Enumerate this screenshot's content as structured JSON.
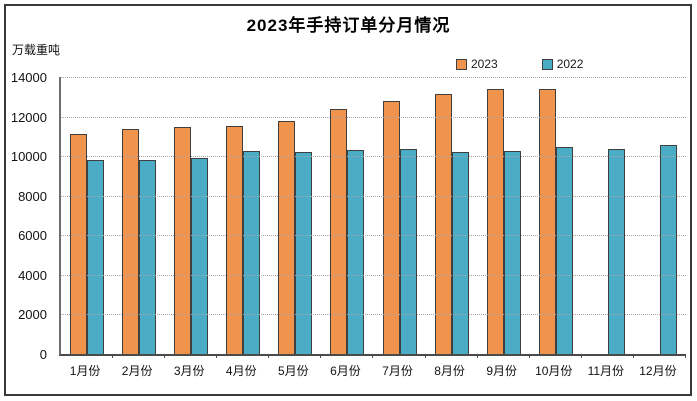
{
  "title": "2023年手持订单分月情况",
  "unit_label": "万载重吨",
  "colors": {
    "series_2023": "#F0934C",
    "series_2022": "#4BACC6",
    "bar_border": "#3F3F3F",
    "gridline": "#A6A6A6",
    "axis": "#4A4A4A",
    "frame": "#3A3A3A",
    "background": "#FFFFFF",
    "text": "#111111"
  },
  "chart_data": {
    "type": "bar",
    "title": "2023年手持订单分月情况",
    "xlabel": "",
    "ylabel": "万载重吨",
    "categories": [
      "1月份",
      "2月份",
      "3月份",
      "4月份",
      "5月份",
      "6月份",
      "7月份",
      "8月份",
      "9月份",
      "10月份",
      "11月份",
      "12月份"
    ],
    "series": [
      {
        "name": "2023",
        "color": "#F0934C",
        "values": [
          11100,
          11350,
          11450,
          11500,
          11800,
          12400,
          12800,
          13150,
          13400,
          13380,
          null,
          null
        ]
      },
      {
        "name": "2022",
        "color": "#4BACC6",
        "values": [
          9800,
          9800,
          9900,
          10250,
          10200,
          10300,
          10350,
          10200,
          10250,
          10450,
          10350,
          10550
        ]
      }
    ],
    "ylim": [
      0,
      14000
    ],
    "yticks": [
      0,
      2000,
      4000,
      6000,
      8000,
      10000,
      12000,
      14000
    ],
    "grid": true,
    "gridline_style": "dotted",
    "legend_position": "top-right-above-plot"
  },
  "legend": {
    "items": [
      {
        "label": "2023",
        "color": "#F0934C"
      },
      {
        "label": "2022",
        "color": "#4BACC6"
      }
    ]
  }
}
